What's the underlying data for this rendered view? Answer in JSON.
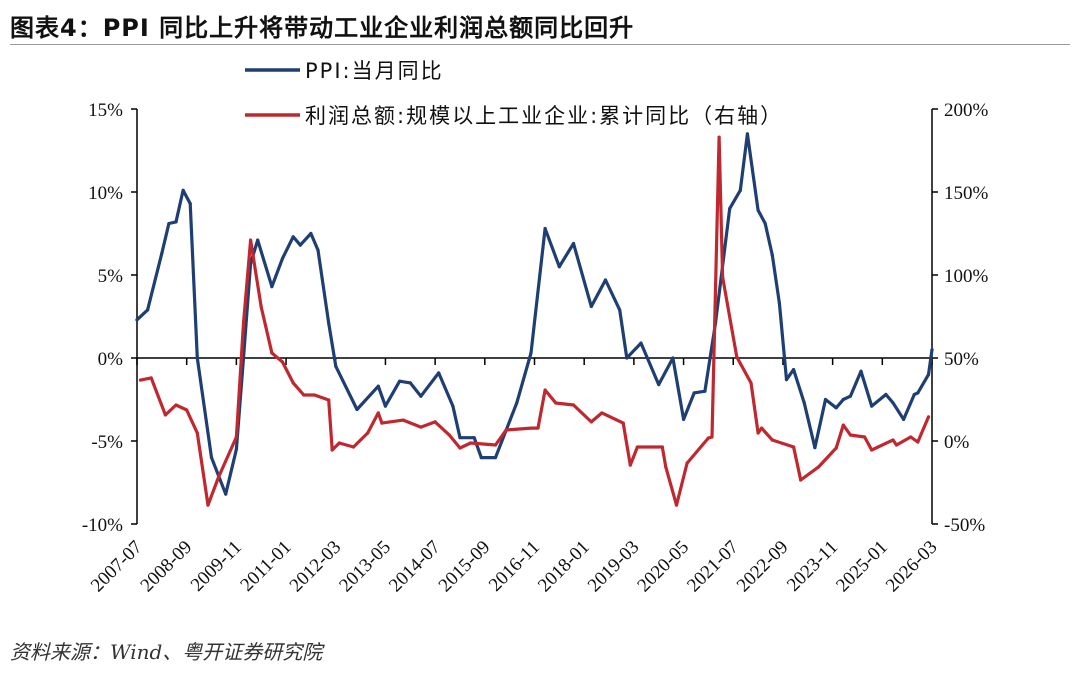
{
  "title": "图表4：PPI 同比上升将带动工业企业利润总额同比回升",
  "source": "资料来源：Wind、粤开证券研究院",
  "chart_data": {
    "type": "line",
    "xlabel": "",
    "ylabel": "",
    "x_ticks": [
      "2007-07",
      "2008-09",
      "2009-11",
      "2011-01",
      "2012-03",
      "2013-05",
      "2014-07",
      "2015-09",
      "2016-11",
      "2018-01",
      "2019-03",
      "2020-05",
      "2021-07",
      "2022-09",
      "2023-11",
      "2025-01",
      "2026-03"
    ],
    "x_range": [
      "2007-07",
      "2026-03"
    ],
    "y_left": {
      "ticks": [
        "15%",
        "10%",
        "5%",
        "0%",
        "-5%",
        "-10%"
      ],
      "range": [
        -10,
        15
      ]
    },
    "y_right": {
      "ticks": [
        "200%",
        "150%",
        "100%",
        "50%",
        "0%",
        "-50%"
      ],
      "range": [
        -50,
        200
      ]
    },
    "grid": false,
    "legend": "top",
    "series": [
      {
        "name": "PPI:当月同比",
        "axis": "left",
        "color": "#1f3f73",
        "points": [
          [
            "2007-07",
            2.3
          ],
          [
            "2007-10",
            2.9
          ],
          [
            "2008-02",
            6.3
          ],
          [
            "2008-04",
            8.1
          ],
          [
            "2008-06",
            8.2
          ],
          [
            "2008-08",
            10.1
          ],
          [
            "2008-10",
            9.3
          ],
          [
            "2008-12",
            0
          ],
          [
            "2009-04",
            -6
          ],
          [
            "2009-08",
            -8.2
          ],
          [
            "2009-11",
            -5.5
          ],
          [
            "2010-01",
            0
          ],
          [
            "2010-03",
            5.7
          ],
          [
            "2010-05",
            7.1
          ],
          [
            "2010-09",
            4.3
          ],
          [
            "2010-12",
            6.0
          ],
          [
            "2011-03",
            7.3
          ],
          [
            "2011-05",
            6.8
          ],
          [
            "2011-08",
            7.5
          ],
          [
            "2011-10",
            6.5
          ],
          [
            "2012-01",
            2.1
          ],
          [
            "2012-03",
            -0.5
          ],
          [
            "2012-09",
            -3.1
          ],
          [
            "2013-03",
            -1.7
          ],
          [
            "2013-05",
            -2.9
          ],
          [
            "2013-09",
            -1.4
          ],
          [
            "2013-12",
            -1.5
          ],
          [
            "2014-03",
            -2.3
          ],
          [
            "2014-08",
            -0.9
          ],
          [
            "2014-12",
            -2.9
          ],
          [
            "2015-02",
            -4.8
          ],
          [
            "2015-06",
            -4.8
          ],
          [
            "2015-08",
            -6
          ],
          [
            "2015-12",
            -6
          ],
          [
            "2016-06",
            -2.7
          ],
          [
            "2016-10",
            0.3
          ],
          [
            "2017-02",
            7.8
          ],
          [
            "2017-06",
            5.5
          ],
          [
            "2017-10",
            6.9
          ],
          [
            "2018-03",
            3.1
          ],
          [
            "2018-07",
            4.7
          ],
          [
            "2018-11",
            2.9
          ],
          [
            "2019-01",
            0
          ],
          [
            "2019-05",
            0.9
          ],
          [
            "2019-10",
            -1.6
          ],
          [
            "2020-02",
            0
          ],
          [
            "2020-05",
            -3.7
          ],
          [
            "2020-08",
            -2.1
          ],
          [
            "2020-11",
            -2
          ],
          [
            "2021-02",
            2.1
          ],
          [
            "2021-06",
            9.0
          ],
          [
            "2021-09",
            10.1
          ],
          [
            "2021-11",
            13.5
          ],
          [
            "2022-02",
            8.9
          ],
          [
            "2022-04",
            8.1
          ],
          [
            "2022-06",
            6.2
          ],
          [
            "2022-08",
            3.3
          ],
          [
            "2022-10",
            -1.3
          ],
          [
            "2022-12",
            -0.7
          ],
          [
            "2023-03",
            -2.7
          ],
          [
            "2023-06",
            -5.4
          ],
          [
            "2023-09",
            -2.5
          ],
          [
            "2023-12",
            -3
          ],
          [
            "2024-02",
            -2.5
          ],
          [
            "2024-04",
            -2.3
          ],
          [
            "2024-07",
            -0.8
          ],
          [
            "2024-10",
            -2.9
          ],
          [
            "2025-02",
            -2.2
          ],
          [
            "2025-04",
            -2.7
          ],
          [
            "2025-07",
            -3.7
          ],
          [
            "2025-10",
            -2.2
          ],
          [
            "2025-11",
            -2.1
          ],
          [
            "2026-02",
            -1.0
          ],
          [
            "2026-03",
            0.5
          ]
        ]
      },
      {
        "name": "利润总额:规模以上工业企业:累计同比（右轴）",
        "axis": "right",
        "color": "#c0282f",
        "points": [
          [
            "2007-08",
            36.7
          ],
          [
            "2007-11",
            38
          ],
          [
            "2008-03",
            15.7
          ],
          [
            "2008-06",
            21.7
          ],
          [
            "2008-09",
            18.7
          ],
          [
            "2008-12",
            4.8
          ],
          [
            "2009-03",
            -38.6
          ],
          [
            "2009-06",
            -21.7
          ],
          [
            "2009-11",
            2.4
          ],
          [
            "2010-01",
            71
          ],
          [
            "2010-03",
            121
          ],
          [
            "2010-06",
            80.7
          ],
          [
            "2010-09",
            53
          ],
          [
            "2010-12",
            47.6
          ],
          [
            "2011-03",
            35
          ],
          [
            "2011-06",
            27.7
          ],
          [
            "2011-09",
            27.7
          ],
          [
            "2012-01",
            24.7
          ],
          [
            "2012-02",
            -5.4
          ],
          [
            "2012-04",
            -1.2
          ],
          [
            "2012-08",
            -3.6
          ],
          [
            "2012-12",
            4.8
          ],
          [
            "2013-03",
            16.9
          ],
          [
            "2013-04",
            10.8
          ],
          [
            "2013-10",
            12.6
          ],
          [
            "2014-03",
            8.4
          ],
          [
            "2014-07",
            11.5
          ],
          [
            "2014-11",
            3.6
          ],
          [
            "2015-02",
            -4.2
          ],
          [
            "2015-05",
            -1.2
          ],
          [
            "2015-12",
            -2.4
          ],
          [
            "2016-03",
            6.6
          ],
          [
            "2016-10",
            7.8
          ],
          [
            "2016-12",
            7.8
          ],
          [
            "2017-02",
            30.7
          ],
          [
            "2017-05",
            22.9
          ],
          [
            "2017-10",
            21.7
          ],
          [
            "2018-03",
            11.5
          ],
          [
            "2018-06",
            16.9
          ],
          [
            "2018-12",
            10.8
          ],
          [
            "2019-02",
            -14.5
          ],
          [
            "2019-04",
            -3.6
          ],
          [
            "2019-11",
            -3.6
          ],
          [
            "2019-12",
            -15.7
          ],
          [
            "2020-03",
            -38.6
          ],
          [
            "2020-06",
            -13.3
          ],
          [
            "2020-12",
            1.8
          ],
          [
            "2021-01",
            2.4
          ],
          [
            "2021-03",
            183
          ],
          [
            "2021-04",
            98.8
          ],
          [
            "2021-08",
            50.6
          ],
          [
            "2021-12",
            35
          ],
          [
            "2022-02",
            4.8
          ],
          [
            "2022-03",
            7.8
          ],
          [
            "2022-06",
            0.6
          ],
          [
            "2022-12",
            -3.6
          ],
          [
            "2023-02",
            -23.5
          ],
          [
            "2023-07",
            -15.7
          ],
          [
            "2023-12",
            -4.2
          ],
          [
            "2024-02",
            9.6
          ],
          [
            "2024-04",
            3.6
          ],
          [
            "2024-08",
            2.4
          ],
          [
            "2024-10",
            -5.4
          ],
          [
            "2025-04",
            0.6
          ],
          [
            "2025-05",
            -2.4
          ],
          [
            "2025-09",
            2.4
          ],
          [
            "2025-11",
            -0.6
          ],
          [
            "2026-02",
            14.5
          ]
        ]
      }
    ]
  }
}
